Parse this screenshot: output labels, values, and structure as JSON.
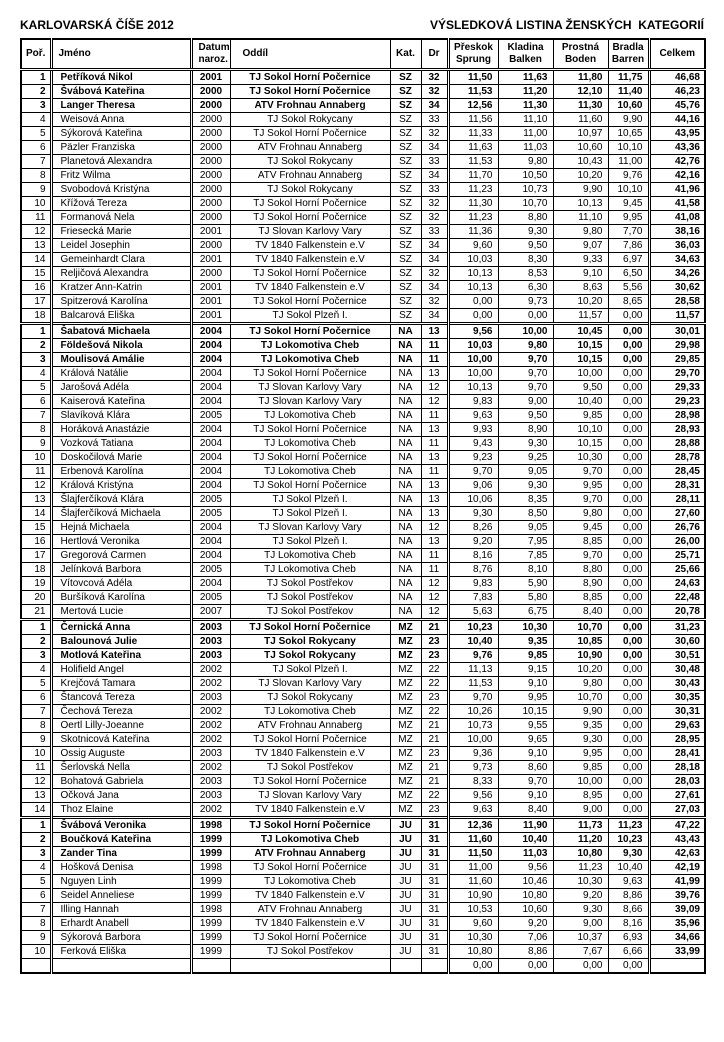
{
  "page": {
    "title_left": "KARLOVARSKÁ ČÍŠE 2012",
    "title_right": "VÝSLEDKOVÁ LISTINA ŽENSKÝCH  KATEGORIÍ"
  },
  "table": {
    "columns": {
      "rank": "Poř.",
      "name": "Jméno",
      "dob": "Datum\nnaroz.",
      "club": "Oddíl",
      "cat": "Kat.",
      "dr": "Dr",
      "vault": "Přeskok\nSprung",
      "beam": "Kladina\nBalken",
      "floor": "Prostná\nBoden",
      "bars": "Bradla\nBarren",
      "total": "Celkem"
    },
    "sections": [
      {
        "category": "SZ",
        "rows": [
          [
            "1",
            "Petříková Nikol",
            "2001",
            "TJ Sokol Horní Počernice",
            "SZ",
            "32",
            "11,50",
            "11,63",
            "11,80",
            "11,75",
            "46,68"
          ],
          [
            "2",
            "Švábová Kateřina",
            "2000",
            "TJ Sokol Horní Počernice",
            "SZ",
            "32",
            "11,53",
            "11,20",
            "12,10",
            "11,40",
            "46,23"
          ],
          [
            "3",
            "Langer Theresa",
            "2000",
            "ATV Frohnau Annaberg",
            "SZ",
            "34",
            "12,56",
            "11,30",
            "11,30",
            "10,60",
            "45,76"
          ],
          [
            "4",
            "Weisová Anna",
            "2000",
            "TJ Sokol Rokycany",
            "SZ",
            "33",
            "11,56",
            "11,10",
            "11,60",
            "9,90",
            "44,16"
          ],
          [
            "5",
            "Sýkorová Kateřina",
            "2000",
            "TJ Sokol Horní Počernice",
            "SZ",
            "32",
            "11,33",
            "11,00",
            "10,97",
            "10,65",
            "43,95"
          ],
          [
            "6",
            "Päzler Franziska",
            "2000",
            "ATV Frohnau Annaberg",
            "SZ",
            "34",
            "11,63",
            "11,03",
            "10,60",
            "10,10",
            "43,36"
          ],
          [
            "7",
            "Planetová Alexandra",
            "2000",
            "TJ Sokol Rokycany",
            "SZ",
            "33",
            "11,53",
            "9,80",
            "10,43",
            "11,00",
            "42,76"
          ],
          [
            "8",
            "Fritz Wilma",
            "2000",
            "ATV Frohnau Annaberg",
            "SZ",
            "34",
            "11,70",
            "10,50",
            "10,20",
            "9,76",
            "42,16"
          ],
          [
            "9",
            "Svobodová Kristýna",
            "2000",
            "TJ Sokol Rokycany",
            "SZ",
            "33",
            "11,23",
            "10,73",
            "9,90",
            "10,10",
            "41,96"
          ],
          [
            "10",
            "Křížová Tereza",
            "2000",
            "TJ Sokol Horní Počernice",
            "SZ",
            "32",
            "11,30",
            "10,70",
            "10,13",
            "9,45",
            "41,58"
          ],
          [
            "11",
            "Formanová Nela",
            "2000",
            "TJ Sokol Horní Počernice",
            "SZ",
            "32",
            "11,23",
            "8,80",
            "11,10",
            "9,95",
            "41,08"
          ],
          [
            "12",
            "Friesecká Marie",
            "2001",
            "TJ Slovan Karlovy Vary",
            "SZ",
            "33",
            "11,36",
            "9,30",
            "9,80",
            "7,70",
            "38,16"
          ],
          [
            "13",
            "Leidel Josephin",
            "2000",
            "TV 1840 Falkenstein e.V",
            "SZ",
            "34",
            "9,60",
            "9,50",
            "9,07",
            "7,86",
            "36,03"
          ],
          [
            "14",
            "Gemeinhardt Clara",
            "2001",
            "TV 1840 Falkenstein e.V",
            "SZ",
            "34",
            "10,03",
            "8,30",
            "9,33",
            "6,97",
            "34,63"
          ],
          [
            "15",
            "Reljičová Alexandra",
            "2000",
            "TJ Sokol Horní Počernice",
            "SZ",
            "32",
            "10,13",
            "8,53",
            "9,10",
            "6,50",
            "34,26"
          ],
          [
            "16",
            "Kratzer Ann-Katrin",
            "2001",
            "TV 1840 Falkenstein e.V",
            "SZ",
            "34",
            "10,13",
            "6,30",
            "8,63",
            "5,56",
            "30,62"
          ],
          [
            "17",
            "Spitzerová Karolína",
            "2001",
            "TJ Sokol Horní Počernice",
            "SZ",
            "32",
            "0,00",
            "9,73",
            "10,20",
            "8,65",
            "28,58"
          ],
          [
            "18",
            "Balcarová Eliška",
            "2001",
            "TJ Sokol Plzeň I.",
            "SZ",
            "34",
            "0,00",
            "0,00",
            "11,57",
            "0,00",
            "11,57"
          ]
        ]
      },
      {
        "category": "NA",
        "rows": [
          [
            "1",
            "Šabatová Michaela",
            "2004",
            "TJ Sokol Horní Počernice",
            "NA",
            "13",
            "9,56",
            "10,00",
            "10,45",
            "0,00",
            "30,01"
          ],
          [
            "2",
            "Földešová Nikola",
            "2004",
            "TJ Lokomotiva Cheb",
            "NA",
            "11",
            "10,03",
            "9,80",
            "10,15",
            "0,00",
            "29,98"
          ],
          [
            "3",
            "Moulisová Amálie",
            "2004",
            "TJ Lokomotiva Cheb",
            "NA",
            "11",
            "10,00",
            "9,70",
            "10,15",
            "0,00",
            "29,85"
          ],
          [
            "4",
            "Králová Natálie",
            "2004",
            "TJ Sokol Horní Počernice",
            "NA",
            "13",
            "10,00",
            "9,70",
            "10,00",
            "0,00",
            "29,70"
          ],
          [
            "5",
            "Jarošová Adéla",
            "2004",
            "TJ Slovan Karlovy Vary",
            "NA",
            "12",
            "10,13",
            "9,70",
            "9,50",
            "0,00",
            "29,33"
          ],
          [
            "6",
            "Kaiserová Kateřina",
            "2004",
            "TJ Slovan Karlovy Vary",
            "NA",
            "12",
            "9,83",
            "9,00",
            "10,40",
            "0,00",
            "29,23"
          ],
          [
            "7",
            "Slavíková Klára",
            "2005",
            "TJ Lokomotiva Cheb",
            "NA",
            "11",
            "9,63",
            "9,50",
            "9,85",
            "0,00",
            "28,98"
          ],
          [
            "8",
            "Horáková Anastázie",
            "2004",
            "TJ Sokol Horní Počernice",
            "NA",
            "13",
            "9,93",
            "8,90",
            "10,10",
            "0,00",
            "28,93"
          ],
          [
            "9",
            "Vozková Tatiana",
            "2004",
            "TJ Lokomotiva Cheb",
            "NA",
            "11",
            "9,43",
            "9,30",
            "10,15",
            "0,00",
            "28,88"
          ],
          [
            "10",
            "Doskočilová Marie",
            "2004",
            "TJ Sokol Horní Počernice",
            "NA",
            "13",
            "9,23",
            "9,25",
            "10,30",
            "0,00",
            "28,78"
          ],
          [
            "11",
            "Erbenová Karolína",
            "2004",
            "TJ Lokomotiva Cheb",
            "NA",
            "11",
            "9,70",
            "9,05",
            "9,70",
            "0,00",
            "28,45"
          ],
          [
            "12",
            "Králová Kristýna",
            "2004",
            "TJ Sokol Horní Počernice",
            "NA",
            "13",
            "9,06",
            "9,30",
            "9,95",
            "0,00",
            "28,31"
          ],
          [
            "13",
            "Šlajferčíková Klára",
            "2005",
            "TJ Sokol Plzeň I.",
            "NA",
            "13",
            "10,06",
            "8,35",
            "9,70",
            "0,00",
            "28,11"
          ],
          [
            "14",
            "Šlajferčíková Michaela",
            "2005",
            "TJ Sokol Plzeň I.",
            "NA",
            "13",
            "9,30",
            "8,50",
            "9,80",
            "0,00",
            "27,60"
          ],
          [
            "15",
            "Hejná Michaela",
            "2004",
            "TJ Slovan Karlovy Vary",
            "NA",
            "12",
            "8,26",
            "9,05",
            "9,45",
            "0,00",
            "26,76"
          ],
          [
            "16",
            "Hertlová Veronika",
            "2004",
            "TJ Sokol Plzeň I.",
            "NA",
            "13",
            "9,20",
            "7,95",
            "8,85",
            "0,00",
            "26,00"
          ],
          [
            "17",
            "Gregorová Carmen",
            "2004",
            "TJ Lokomotiva Cheb",
            "NA",
            "11",
            "8,16",
            "7,85",
            "9,70",
            "0,00",
            "25,71"
          ],
          [
            "18",
            "Jelínková Barbora",
            "2005",
            "TJ Lokomotiva Cheb",
            "NA",
            "11",
            "8,76",
            "8,10",
            "8,80",
            "0,00",
            "25,66"
          ],
          [
            "19",
            "Vítovcová Adéla",
            "2004",
            "TJ Sokol Postřekov",
            "NA",
            "12",
            "9,83",
            "5,90",
            "8,90",
            "0,00",
            "24,63"
          ],
          [
            "20",
            "Buršíková Karolína",
            "2005",
            "TJ Sokol Postřekov",
            "NA",
            "12",
            "7,83",
            "5,80",
            "8,85",
            "0,00",
            "22,48"
          ],
          [
            "21",
            "Mertová Lucie",
            "2007",
            "TJ Sokol Postřekov",
            "NA",
            "12",
            "5,63",
            "6,75",
            "8,40",
            "0,00",
            "20,78"
          ]
        ]
      },
      {
        "category": "MZ",
        "rows": [
          [
            "1",
            "Černická Anna",
            "2003",
            "TJ Sokol Horní Počernice",
            "MZ",
            "21",
            "10,23",
            "10,30",
            "10,70",
            "0,00",
            "31,23"
          ],
          [
            "2",
            "Balounová Julie",
            "2003",
            "TJ Sokol Rokycany",
            "MZ",
            "23",
            "10,40",
            "9,35",
            "10,85",
            "0,00",
            "30,60"
          ],
          [
            "3",
            "Motlová Kateřina",
            "2003",
            "TJ Sokol Rokycany",
            "MZ",
            "23",
            "9,76",
            "9,85",
            "10,90",
            "0,00",
            "30,51"
          ],
          [
            "4",
            "Holifield Angel",
            "2002",
            "TJ Sokol Plzeň I.",
            "MZ",
            "22",
            "11,13",
            "9,15",
            "10,20",
            "0,00",
            "30,48"
          ],
          [
            "5",
            "Krejčová Tamara",
            "2002",
            "TJ Slovan Karlovy Vary",
            "MZ",
            "22",
            "11,53",
            "9,10",
            "9,80",
            "0,00",
            "30,43"
          ],
          [
            "6",
            "Štancová Tereza",
            "2003",
            "TJ Sokol Rokycany",
            "MZ",
            "23",
            "9,70",
            "9,95",
            "10,70",
            "0,00",
            "30,35"
          ],
          [
            "7",
            "Čechová Tereza",
            "2002",
            "TJ Lokomotiva Cheb",
            "MZ",
            "22",
            "10,26",
            "10,15",
            "9,90",
            "0,00",
            "30,31"
          ],
          [
            "8",
            "Oertl Lilly-Joeanne",
            "2002",
            "ATV Frohnau Annaberg",
            "MZ",
            "21",
            "10,73",
            "9,55",
            "9,35",
            "0,00",
            "29,63"
          ],
          [
            "9",
            "Skotnicová Kateřina",
            "2002",
            "TJ Sokol Horní Počernice",
            "MZ",
            "21",
            "10,00",
            "9,65",
            "9,30",
            "0,00",
            "28,95"
          ],
          [
            "10",
            "Ossig Auguste",
            "2003",
            "TV 1840 Falkenstein e.V",
            "MZ",
            "23",
            "9,36",
            "9,10",
            "9,95",
            "0,00",
            "28,41"
          ],
          [
            "11",
            "Šerlovská Nella",
            "2002",
            "TJ Sokol Postřekov",
            "MZ",
            "21",
            "9,73",
            "8,60",
            "9,85",
            "0,00",
            "28,18"
          ],
          [
            "12",
            "Bohatová Gabriela",
            "2003",
            "TJ Sokol Horní Počernice",
            "MZ",
            "21",
            "8,33",
            "9,70",
            "10,00",
            "0,00",
            "28,03"
          ],
          [
            "13",
            "Očková Jana",
            "2003",
            "TJ Slovan Karlovy Vary",
            "MZ",
            "22",
            "9,56",
            "9,10",
            "8,95",
            "0,00",
            "27,61"
          ],
          [
            "14",
            "Thoz Elaine",
            "2002",
            "TV 1840 Falkenstein e.V",
            "MZ",
            "23",
            "9,63",
            "8,40",
            "9,00",
            "0,00",
            "27,03"
          ]
        ]
      },
      {
        "category": "JU",
        "rows": [
          [
            "1",
            "Švábová Veronika",
            "1998",
            "TJ Sokol Horní Počernice",
            "JU",
            "31",
            "12,36",
            "11,90",
            "11,73",
            "11,23",
            "47,22"
          ],
          [
            "2",
            "Boučková Kateřina",
            "1999",
            "TJ Lokomotiva Cheb",
            "JU",
            "31",
            "11,60",
            "10,40",
            "11,20",
            "10,23",
            "43,43"
          ],
          [
            "3",
            "Zander Tina",
            "1999",
            "ATV Frohnau Annaberg",
            "JU",
            "31",
            "11,50",
            "11,03",
            "10,80",
            "9,30",
            "42,63"
          ],
          [
            "4",
            "Hošková Denisa",
            "1998",
            "TJ Sokol Horní Počernice",
            "JU",
            "31",
            "11,00",
            "9,56",
            "11,23",
            "10,40",
            "42,19"
          ],
          [
            "5",
            "Nguyen Linh",
            "1999",
            "TJ Lokomotiva Cheb",
            "JU",
            "31",
            "11,60",
            "10,46",
            "10,30",
            "9,63",
            "41,99"
          ],
          [
            "6",
            "Seidel Anneliese",
            "1999",
            "TV 1840 Falkenstein e.V",
            "JU",
            "31",
            "10,90",
            "10,80",
            "9,20",
            "8,86",
            "39,76"
          ],
          [
            "7",
            "Illing Hannah",
            "1998",
            "ATV Frohnau Annaberg",
            "JU",
            "31",
            "10,53",
            "10,60",
            "9,30",
            "8,66",
            "39,09"
          ],
          [
            "8",
            "Erhardt Anabell",
            "1999",
            "TV 1840 Falkenstein e.V",
            "JU",
            "31",
            "9,60",
            "9,20",
            "9,00",
            "8,16",
            "35,96"
          ],
          [
            "9",
            "Sýkorová Barbora",
            "1999",
            "TJ Sokol Horní Počernice",
            "JU",
            "31",
            "10,30",
            "7,06",
            "10,37",
            "6,93",
            "34,66"
          ],
          [
            "10",
            "Ferková Eliška",
            "1999",
            "TJ Sokol Postřekov",
            "JU",
            "31",
            "10,80",
            "8,86",
            "7,67",
            "6,66",
            "33,99"
          ],
          [
            "",
            "",
            "",
            "",
            "",
            "",
            "0,00",
            "0,00",
            "0,00",
            "0,00",
            ""
          ]
        ]
      }
    ]
  }
}
